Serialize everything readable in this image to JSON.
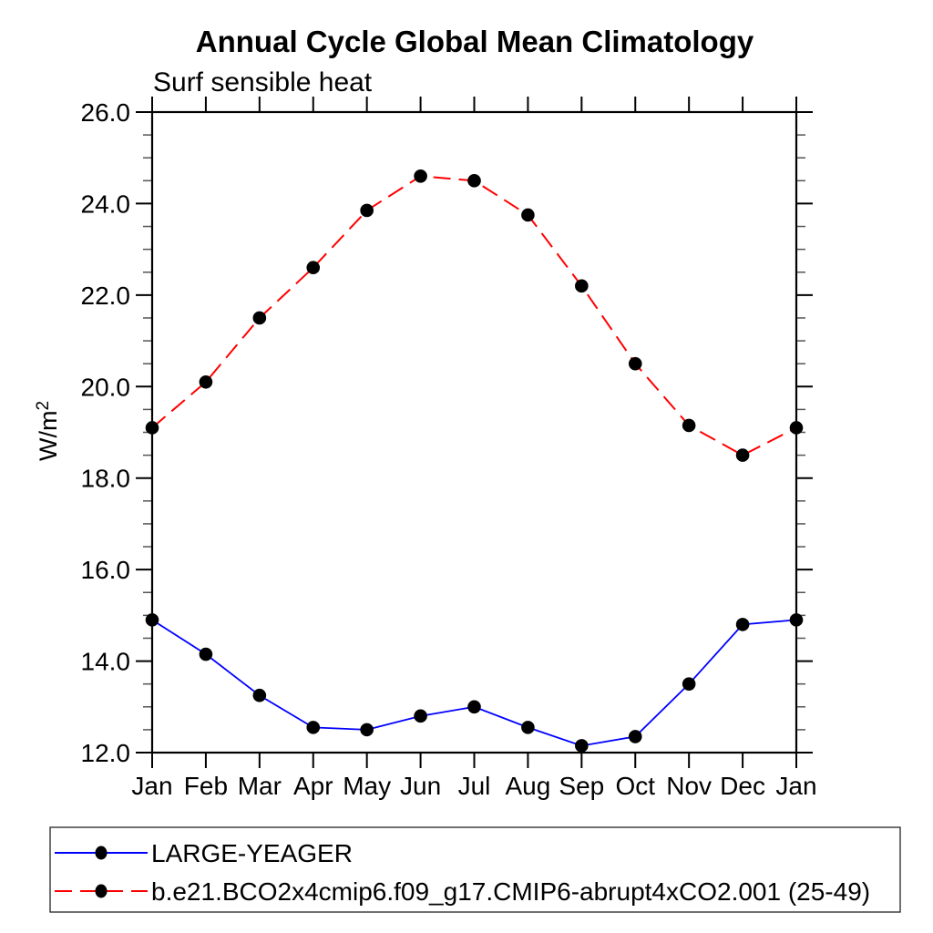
{
  "chart_data": {
    "type": "line",
    "title": "Annual Cycle Global Mean Climatology",
    "subtitle": "Surf sensible heat",
    "ylabel": "W/m²",
    "ylabel_base": "W/m",
    "ylabel_exponent": "2",
    "xlabel": "",
    "x_ticklabels": [
      "Jan",
      "Feb",
      "Mar",
      "Apr",
      "May",
      "Jun",
      "Jul",
      "Aug",
      "Sep",
      "Oct",
      "Nov",
      "Dec",
      "Jan"
    ],
    "ylim": [
      12.0,
      26.0
    ],
    "y_tick_values": [
      26.0,
      24.0,
      22.0,
      20.0,
      18.0,
      16.0,
      14.0,
      12.0
    ],
    "y_tick_labels": [
      "26.0",
      "24.0",
      "22.0",
      "20.0",
      "18.0",
      "16.0",
      "14.0",
      "12.0"
    ],
    "y_minor_step": 0.5,
    "grid": "off",
    "marker_color": "#000000",
    "axis_color": "#000000",
    "minor_tick_color": "#555555",
    "legend_position": "bottom-left",
    "series": [
      {
        "name": "LARGE-YEAGER",
        "color": "#0000ff",
        "line_style": "solid",
        "marker": "filled-circle",
        "values": [
          14.9,
          14.15,
          13.25,
          12.55,
          12.5,
          12.8,
          13.0,
          12.55,
          12.15,
          12.35,
          13.5,
          14.8,
          14.9
        ]
      },
      {
        "name": "b.e21.BCO2x4cmip6.f09_g17.CMIP6-abrupt4xCO2.001 (25-49)",
        "color": "#ff0000",
        "line_style": "dashed",
        "marker": "filled-circle",
        "values": [
          19.1,
          20.1,
          21.5,
          22.6,
          23.85,
          24.6,
          24.5,
          23.75,
          22.2,
          20.5,
          19.15,
          18.5,
          19.1
        ]
      }
    ]
  }
}
